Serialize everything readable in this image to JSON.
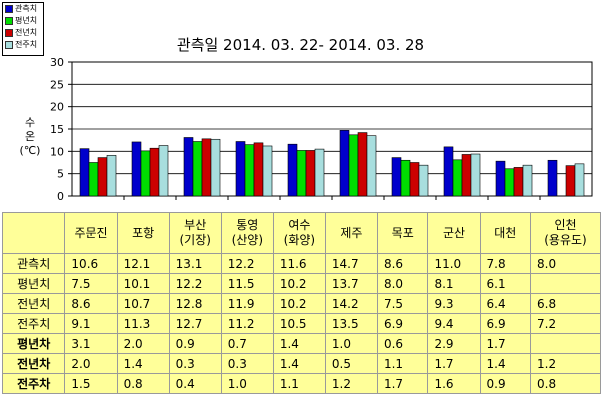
{
  "chart_data": {
    "type": "bar",
    "title": "관측일 2014. 03. 22-  2014. 03. 28",
    "ylabel": [
      "수",
      "온",
      "(℃)"
    ],
    "ylim": [
      0,
      30
    ],
    "yticks": [
      "0",
      "5",
      "10",
      "15",
      "20",
      "25",
      "30"
    ],
    "grid": true,
    "legend_position": "top-left",
    "categories": [
      "주문진",
      "포항",
      "부산\n(기장)",
      "통영\n(산양)",
      "여수\n(화양)",
      "제주",
      "목포",
      "군산",
      "대천",
      "인천\n(용유도)"
    ],
    "series": [
      {
        "name": "관측치",
        "color": "#0000cc",
        "values": [
          10.6,
          12.1,
          13.1,
          12.2,
          11.6,
          14.7,
          8.6,
          11.0,
          7.8,
          8.0
        ]
      },
      {
        "name": "평년치",
        "color": "#00dd00",
        "values": [
          7.5,
          10.1,
          12.2,
          11.5,
          10.2,
          13.7,
          8.0,
          8.1,
          6.1,
          null
        ]
      },
      {
        "name": "전년치",
        "color": "#cc0000",
        "values": [
          8.6,
          10.7,
          12.8,
          11.9,
          10.2,
          14.2,
          7.5,
          9.3,
          6.4,
          6.8
        ]
      },
      {
        "name": "전주치",
        "color": "#a8dede",
        "values": [
          9.1,
          11.3,
          12.7,
          11.2,
          10.5,
          13.5,
          6.9,
          9.4,
          6.9,
          7.2
        ]
      }
    ]
  },
  "table": {
    "columns": [
      "주문진",
      "포항",
      "부산\n(기장)",
      "통영\n(산양)",
      "여수\n(화양)",
      "제주",
      "목포",
      "군산",
      "대천",
      "인천\n(용유도)"
    ],
    "rows": [
      {
        "label": "관측치",
        "bold": false,
        "cells": [
          "10.6",
          "12.1",
          "13.1",
          "12.2",
          "11.6",
          "14.7",
          "8.6",
          "11.0",
          "7.8",
          "8.0"
        ]
      },
      {
        "label": "평년치",
        "bold": false,
        "cells": [
          "7.5",
          "10.1",
          "12.2",
          "11.5",
          "10.2",
          "13.7",
          "8.0",
          "8.1",
          "6.1",
          ""
        ]
      },
      {
        "label": "전년치",
        "bold": false,
        "cells": [
          "8.6",
          "10.7",
          "12.8",
          "11.9",
          "10.2",
          "14.2",
          "7.5",
          "9.3",
          "6.4",
          "6.8"
        ]
      },
      {
        "label": "전주치",
        "bold": false,
        "cells": [
          "9.1",
          "11.3",
          "12.7",
          "11.2",
          "10.5",
          "13.5",
          "6.9",
          "9.4",
          "6.9",
          "7.2"
        ]
      },
      {
        "label": "평년차",
        "bold": true,
        "cells": [
          "3.1",
          "2.0",
          "0.9",
          "0.7",
          "1.4",
          "1.0",
          "0.6",
          "2.9",
          "1.7",
          ""
        ]
      },
      {
        "label": "전년차",
        "bold": true,
        "cells": [
          "2.0",
          "1.4",
          "0.3",
          "0.3",
          "1.4",
          "0.5",
          "1.1",
          "1.7",
          "1.4",
          "1.2"
        ]
      },
      {
        "label": "전주차",
        "bold": true,
        "cells": [
          "1.5",
          "0.8",
          "0.4",
          "1.0",
          "1.1",
          "1.2",
          "1.7",
          "1.6",
          "0.9",
          "0.8"
        ]
      }
    ]
  }
}
